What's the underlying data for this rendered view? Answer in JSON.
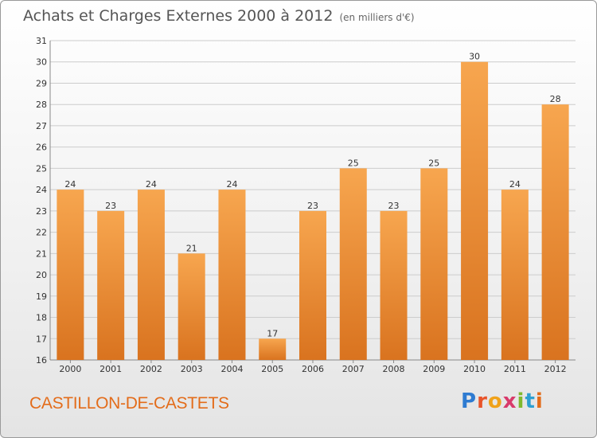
{
  "header": {
    "title": "Achats et Charges Externes 2000 à 2012",
    "unit": "(en milliers d'€)"
  },
  "footer": {
    "city": "CASTILLON-DE-CASTETS",
    "logo_letters": [
      "P",
      "r",
      "o",
      "x",
      "i",
      "t",
      "i"
    ]
  },
  "colors": {
    "bar_light": "#f7a64f",
    "bar_dark": "#d9731f",
    "grid": "#cccccc",
    "text": "#333333",
    "city": "#e36c1a"
  },
  "chart_data": {
    "type": "bar",
    "categories": [
      "2000",
      "2001",
      "2002",
      "2003",
      "2004",
      "2005",
      "2006",
      "2007",
      "2008",
      "2009",
      "2010",
      "2011",
      "2012"
    ],
    "values": [
      24,
      23,
      24,
      21,
      24,
      17,
      23,
      25,
      23,
      25,
      30,
      24,
      28
    ],
    "ylim": [
      16,
      31
    ],
    "yticks": [
      16,
      17,
      18,
      19,
      20,
      21,
      22,
      23,
      24,
      25,
      26,
      27,
      28,
      29,
      30,
      31
    ],
    "grid": true
  }
}
